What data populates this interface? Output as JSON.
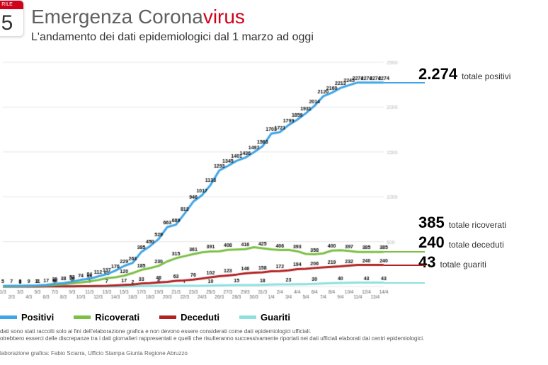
{
  "calendar": {
    "month_abbrev": "RILE",
    "day": "5"
  },
  "title": {
    "pre": "Emergenza Corona",
    "accent": "virus"
  },
  "subtitle": "L'andamento dei dati epidemiologici dal 1 marzo ad oggi",
  "chart": {
    "type": "line",
    "background_color": "#ffffff",
    "grid_color": "#e6e6e6",
    "axis_color": "#cccccc",
    "ylim": [
      0,
      2500
    ],
    "ytick_step": 500,
    "yticks_right_minor": [
      500,
      1000,
      1500,
      2000,
      2500
    ],
    "line_width": 3,
    "value_label_fontsize": 7,
    "xlabel_fontsize": 6.5,
    "dates": [
      "1/3",
      "2/3",
      "3/3",
      "4/3",
      "5/3",
      "6/3",
      "7/3",
      "8/3",
      "9/3",
      "10/3",
      "11/3",
      "12/3",
      "13/3",
      "14/3",
      "15/3",
      "16/3",
      "17/3",
      "18/3",
      "19/3",
      "20/3",
      "21/3",
      "22/3",
      "23/3",
      "24/3",
      "25/3",
      "26/3",
      "27/3",
      "28/3",
      "29/3",
      "30/3",
      "31/3",
      "1/4",
      "2/4",
      "3/4",
      "4/4",
      "5/4",
      "6/4",
      "7/4",
      "8/4",
      "9/4",
      "10/4",
      "11/4",
      "12/4",
      "13/4",
      "14/4"
    ],
    "series": {
      "positivi": {
        "label": "Positivi",
        "color": "#3da5e8",
        "values": [
          5,
          7,
          8,
          9,
          11,
          17,
          30,
          38,
          53,
          74,
          84,
          112,
          137,
          176,
          229,
          263,
          385,
          450,
          529,
          663,
          689,
          813,
          946,
          1017,
          1133,
          1293,
          1345,
          1401,
          1436,
          1497,
          1563,
          1703,
          1721,
          1799,
          1859,
          1931,
          2014,
          2120,
          2160,
          2213,
          2245,
          2274,
          2274,
          2274,
          2274
        ]
      },
      "ricoverati": {
        "label": "Ricoverati",
        "color": "#7bc043",
        "values": [
          0,
          1,
          3,
          5,
          7,
          12,
          18,
          25,
          36,
          45,
          55,
          72,
          92,
          102,
          120,
          150,
          185,
          205,
          230,
          280,
          315,
          338,
          361,
          381,
          391,
          392,
          408,
          413,
          416,
          437,
          425,
          414,
          406,
          408,
          393,
          363,
          358,
          369,
          400,
          405,
          397,
          385,
          385,
          385,
          385
        ]
      },
      "deceduti": {
        "label": "Deceduti",
        "color": "#b22222",
        "values": [
          0,
          0,
          0,
          0,
          0,
          1,
          1,
          2,
          2,
          3,
          4,
          6,
          7,
          11,
          17,
          22,
          33,
          38,
          46,
          52,
          63,
          68,
          76,
          88,
          102,
          115,
          123,
          133,
          146,
          153,
          158,
          169,
          172,
          179,
          194,
          198,
          206,
          212,
          219,
          224,
          232,
          240,
          240,
          240,
          240
        ]
      },
      "guariti": {
        "label": "Guariti",
        "color": "#8ee0e0",
        "values": [
          0,
          0,
          0,
          0,
          0,
          0,
          0,
          0,
          0,
          0,
          0,
          0,
          0,
          0,
          0,
          2,
          3,
          5,
          6,
          7,
          7,
          7,
          7,
          7,
          10,
          12,
          14,
          15,
          16,
          16,
          18,
          21,
          23,
          23,
          25,
          25,
          30,
          33,
          38,
          40,
          42,
          43,
          43,
          43,
          43
        ]
      }
    }
  },
  "legend": {
    "positivi": "Positivi",
    "ricoverati": "Ricoverati",
    "deceduti": "Deceduti",
    "guariti": "Guariti"
  },
  "totals": {
    "positivi": {
      "num": "2.274",
      "label": "totale positivi"
    },
    "ricoverati": {
      "num": "385",
      "label": "totale ricoverati"
    },
    "deceduti": {
      "num": "240",
      "label": "totale deceduti"
    },
    "guariti": {
      "num": "43",
      "label": "totale guariti"
    }
  },
  "footer": {
    "line1": "dati sono stati raccolti solo ai fini dell'elaborazione grafica e non devono essere considerati come dati epidemiologici ufficiali.",
    "line2": "otrebbero esserci delle discrepanze tra i dati giornalieri rappresentati e quelli che risulteranno successivamente riportati nei dati ufficiali elaborati dai centri epidemiologici.",
    "credit": "laborazione grafica: Fabio Sciarra, Ufficio Stampa Giunta Regione Abruzzo"
  }
}
